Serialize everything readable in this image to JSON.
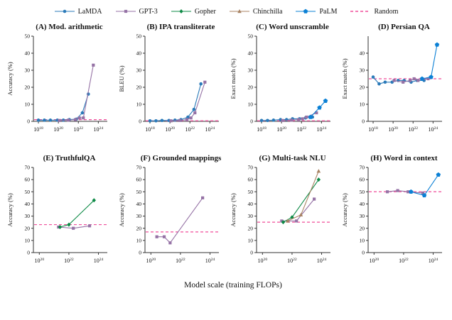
{
  "figure": {
    "xlabel": "Model scale (training FLOPs)"
  },
  "legend": [
    {
      "label": "LaMDA",
      "color": "#2a7ab9",
      "marker": "circle"
    },
    {
      "label": "GPT-3",
      "color": "#9572a5",
      "marker": "square"
    },
    {
      "label": "Gopher",
      "color": "#0e8a46",
      "marker": "diamond"
    },
    {
      "label": "Chinchilla",
      "color": "#a88262",
      "marker": "triangle"
    },
    {
      "label": "PaLM",
      "color": "#0b80d5",
      "marker": "pentagon"
    },
    {
      "label": "Random",
      "color": "#f04d9a",
      "marker": "dashed-line"
    }
  ],
  "chart_data": [
    {
      "type": "line",
      "title": "(A) Mod. arithmetic",
      "ylabel": "Accuracy (%)",
      "ylim": [
        0,
        50
      ],
      "yticks": [
        0,
        10,
        20,
        30,
        40,
        50
      ],
      "xlim_log10": [
        17.5,
        24.9
      ],
      "xticks_log10": [
        18,
        20,
        22,
        24
      ],
      "random_baseline": 1,
      "series": [
        {
          "name": "LaMDA",
          "x_log10": [
            18,
            18.6,
            19.2,
            19.9,
            20.5,
            21.1,
            21.8,
            22.4,
            23.0
          ],
          "y": [
            0.7,
            0.7,
            0.7,
            0.7,
            0.7,
            1,
            1.3,
            5,
            16
          ]
        },
        {
          "name": "GPT-3",
          "x_log10": [
            20.1,
            21.0,
            21.7,
            22.1,
            22.5,
            23.5
          ],
          "y": [
            0.5,
            0.7,
            1,
            2,
            2,
            33
          ]
        }
      ]
    },
    {
      "type": "line",
      "title": "(B) IPA transliterate",
      "ylabel": "BLEU (%)",
      "ylim": [
        0,
        50
      ],
      "yticks": [
        0,
        10,
        20,
        30,
        40,
        50
      ],
      "xlim_log10": [
        17.5,
        24.9
      ],
      "xticks_log10": [
        18,
        20,
        22,
        24
      ],
      "random_baseline": 0.3,
      "series": [
        {
          "name": "LaMDA",
          "x_log10": [
            18,
            18.6,
            19.2,
            19.9,
            20.5,
            21.1,
            21.8,
            22.4,
            23.1
          ],
          "y": [
            0.3,
            0.3,
            0.5,
            0.5,
            0.7,
            1,
            2.5,
            7,
            22
          ]
        },
        {
          "name": "GPT-3",
          "x_log10": [
            20.1,
            21.0,
            21.7,
            22.1,
            22.5,
            23.5
          ],
          "y": [
            0.3,
            0.5,
            1,
            2,
            5,
            23
          ]
        }
      ]
    },
    {
      "type": "line",
      "title": "(C) Word unscramble",
      "ylabel": "Exact match (%)",
      "ylim": [
        0,
        50
      ],
      "yticks": [
        0,
        10,
        20,
        30,
        40,
        50
      ],
      "xlim_log10": [
        17.5,
        24.9
      ],
      "xticks_log10": [
        18,
        20,
        22,
        24
      ],
      "random_baseline": 0.3,
      "series": [
        {
          "name": "LaMDA",
          "x_log10": [
            18,
            18.6,
            19.2,
            19.9,
            20.5,
            21.1,
            21.8,
            22.4,
            23.1
          ],
          "y": [
            0.5,
            0.5,
            0.7,
            1,
            1,
            1.5,
            1.5,
            2,
            2.5
          ]
        },
        {
          "name": "GPT-3",
          "x_log10": [
            20.1,
            21.0,
            21.7,
            22.1,
            22.5,
            23.5
          ],
          "y": [
            0.5,
            0.7,
            1,
            1.5,
            2.5,
            5
          ]
        },
        {
          "name": "PaLM",
          "x_log10": [
            22.9,
            23.8,
            24.4
          ],
          "y": [
            2.5,
            8,
            12
          ]
        }
      ]
    },
    {
      "type": "line",
      "title": "(D) Persian QA",
      "ylabel": "Exact match (%)",
      "ylim": [
        0,
        50
      ],
      "yticks": [
        0,
        10,
        20,
        30,
        40
      ],
      "xlim_log10": [
        17.5,
        24.9
      ],
      "xticks_log10": [
        18,
        20,
        22,
        24
      ],
      "random_baseline": 25,
      "series": [
        {
          "name": "LaMDA",
          "x_log10": [
            18,
            18.6,
            19.2,
            19.9,
            20.5,
            21.1,
            21.8,
            22.4,
            23.1
          ],
          "y": [
            26,
            22,
            23,
            23,
            24,
            24,
            23,
            24,
            24
          ]
        },
        {
          "name": "GPT-3",
          "x_log10": [
            20.1,
            21.0,
            21.7,
            22.1,
            22.5,
            23.5
          ],
          "y": [
            24,
            23,
            24,
            25,
            24,
            25
          ]
        },
        {
          "name": "PaLM",
          "x_log10": [
            22.9,
            23.8,
            24.4
          ],
          "y": [
            25,
            26,
            45
          ]
        }
      ]
    },
    {
      "type": "line",
      "title": "(E) TruthfulQA",
      "ylabel": "Accuracy (%)",
      "ylim": [
        0,
        70
      ],
      "yticks": [
        0,
        10,
        20,
        30,
        40,
        50,
        60,
        70
      ],
      "xlim_log10": [
        19.6,
        24.6
      ],
      "xticks_log10": [
        20,
        22,
        24
      ],
      "random_baseline": 23,
      "series": [
        {
          "name": "GPT-3",
          "x_log10": [
            21.3,
            22.3,
            23.4
          ],
          "y": [
            21,
            20,
            22
          ]
        },
        {
          "name": "Gopher",
          "x_log10": [
            21.4,
            22.0,
            23.7
          ],
          "y": [
            21,
            23,
            43
          ]
        }
      ]
    },
    {
      "type": "line",
      "title": "(F) Grounded mappings",
      "ylabel": "Accuracy (%)",
      "ylim": [
        0,
        70
      ],
      "yticks": [
        0,
        10,
        20,
        30,
        40,
        50,
        60,
        70
      ],
      "xlim_log10": [
        19.6,
        24.6
      ],
      "xticks_log10": [
        20,
        22,
        24
      ],
      "random_baseline": 17,
      "series": [
        {
          "name": "GPT-3",
          "x_log10": [
            20.4,
            20.9,
            21.3,
            23.5
          ],
          "y": [
            13,
            13,
            8,
            45
          ]
        }
      ]
    },
    {
      "type": "line",
      "title": "(G) Multi-task NLU",
      "ylabel": "Accuracy (%)",
      "ylim": [
        0,
        70
      ],
      "yticks": [
        0,
        10,
        20,
        30,
        40,
        50,
        60,
        70
      ],
      "xlim_log10": [
        19.6,
        24.6
      ],
      "xticks_log10": [
        20,
        22,
        24
      ],
      "random_baseline": 25,
      "series": [
        {
          "name": "GPT-3",
          "x_log10": [
            21.3,
            22.3,
            23.5
          ],
          "y": [
            26,
            26,
            44
          ]
        },
        {
          "name": "Gopher",
          "x_log10": [
            21.4,
            22.0,
            23.8
          ],
          "y": [
            25,
            29,
            60
          ]
        },
        {
          "name": "Chinchilla",
          "x_log10": [
            21.7,
            22.6,
            23.8
          ],
          "y": [
            26,
            31,
            67
          ]
        }
      ]
    },
    {
      "type": "line",
      "title": "(H) Word in context",
      "ylabel": "Accuracy (%)",
      "ylim": [
        0,
        70
      ],
      "yticks": [
        0,
        10,
        20,
        30,
        40,
        50,
        60,
        70
      ],
      "xlim_log10": [
        19.6,
        24.6
      ],
      "xticks_log10": [
        20,
        22,
        24
      ],
      "random_baseline": 50,
      "series": [
        {
          "name": "GPT-3",
          "x_log10": [
            20.9,
            21.6,
            22.3,
            23.3
          ],
          "y": [
            50,
            51,
            50,
            49
          ]
        },
        {
          "name": "PaLM",
          "x_log10": [
            22.5,
            23.4,
            24.35
          ],
          "y": [
            50,
            47,
            64
          ]
        }
      ]
    }
  ]
}
